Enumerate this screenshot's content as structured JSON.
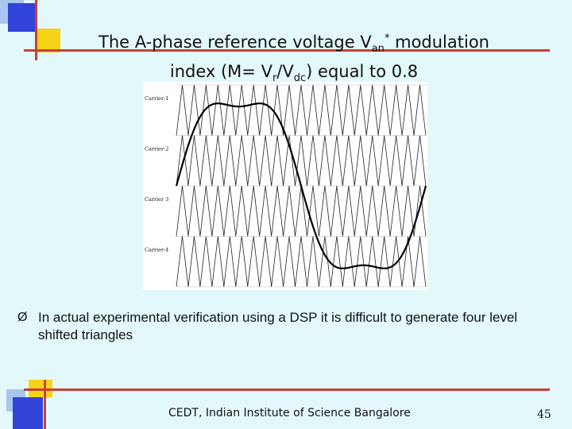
{
  "title": {
    "line1_prefix": "The A-phase reference voltage V",
    "line1_sub": "an",
    "line1_sup": "*",
    "line1_suffix": " modulation",
    "line2_prefix": "index (M= V",
    "line2_sub1": "r",
    "line2_mid": "/V",
    "line2_sub2": "dc",
    "line2_suffix": ") equal to 0.8"
  },
  "figure": {
    "carrier_labels": [
      "Carrier-1",
      "Carrier-2",
      "Carrier 3",
      "Carrier-4"
    ],
    "modulation_index": 0.8,
    "carrier_cycles": 21
  },
  "bullet": {
    "marker": "Ø",
    "text": "In actual experimental verification using a DSP it is difficult to generate four level shifted triangles"
  },
  "footer": {
    "text": "CEDT, Indian Institute of Science Bangalore",
    "page_number": "45"
  },
  "colors": {
    "background": "#e3f8fb",
    "deco_blue": "#3344d8",
    "deco_yellow": "#f7d318",
    "deco_red": "#c84036",
    "deco_light_blue": "#a9c6f0"
  }
}
